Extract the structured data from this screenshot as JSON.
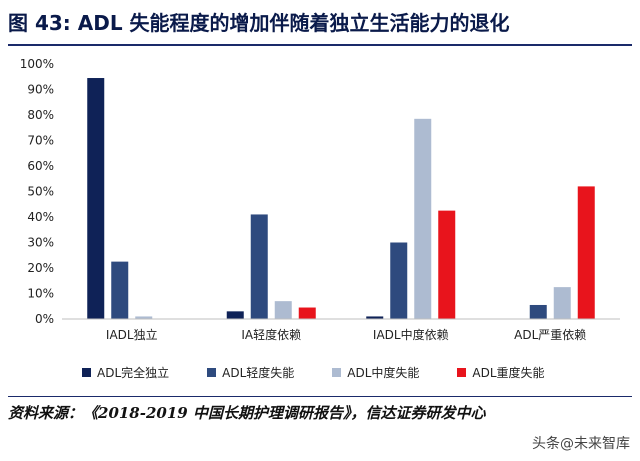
{
  "title": "图 43:  ADL 失能程度的增加伴随着独立生活能力的退化",
  "source": "资料来源：《2018-2019 中国长期护理调研报告》，信达证券研发中心",
  "watermark": "头条@未来智库",
  "chart_data": {
    "type": "bar",
    "categories": [
      "IADL独立",
      "IA轻度依赖",
      "IADL中度依赖",
      "ADL严重依赖"
    ],
    "series": [
      {
        "name": "ADL完全独立",
        "color": "#0f2257",
        "values": [
          94.5,
          3.0,
          1.0,
          0.0
        ]
      },
      {
        "name": "ADL轻度失能",
        "color": "#2e4a7e",
        "values": [
          22.5,
          41.0,
          30.0,
          5.5
        ]
      },
      {
        "name": "ADL中度失能",
        "color": "#adbbd1",
        "values": [
          1.0,
          7.0,
          78.5,
          12.5
        ]
      },
      {
        "name": "ADL重度失能",
        "color": "#e8141c",
        "values": [
          0.0,
          4.5,
          42.5,
          52.0
        ]
      }
    ],
    "ylim": [
      0,
      100
    ],
    "yticks": [
      "0%",
      "10%",
      "20%",
      "30%",
      "40%",
      "50%",
      "60%",
      "70%",
      "80%",
      "90%",
      "100%"
    ],
    "xlabel": "",
    "ylabel": "",
    "legend_position": "bottom",
    "grid": false
  }
}
